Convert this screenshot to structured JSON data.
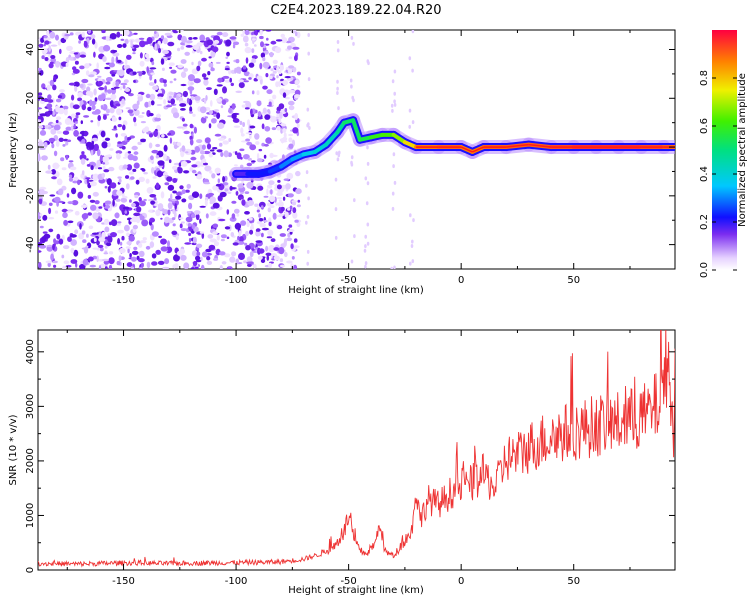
{
  "title": "C2E4.2023.189.22.04.R20",
  "colors": {
    "snr_line": "#ee3333",
    "ridge_core": "#ff1a1a",
    "scatter": "#7a2cf0"
  },
  "chart_data": [
    {
      "type": "heatmap",
      "xlabel": "Height of straight line (km)",
      "ylabel": "Frequency (Hz)",
      "xlim": [
        -188,
        95
      ],
      "ylim": [
        -50,
        48
      ],
      "xticks": [
        -150,
        -100,
        -50,
        0,
        50
      ],
      "yticks": [
        40,
        20,
        0,
        -20,
        -40
      ],
      "colorbar": {
        "label": "Normalized spectral amplitude",
        "range": [
          0,
          1
        ],
        "ticks": [
          0.0,
          0.2,
          0.4,
          0.6,
          0.8
        ]
      },
      "ridge": {
        "x": [
          -100,
          -95,
          -90,
          -85,
          -80,
          -75,
          -70,
          -65,
          -60,
          -55,
          -52,
          -48,
          -45,
          -40,
          -35,
          -30,
          -25,
          -20,
          -10,
          0,
          5,
          10,
          20,
          30,
          40,
          50,
          60,
          70,
          80,
          90,
          95
        ],
        "y": [
          -11,
          -11,
          -11,
          -10,
          -8,
          -5,
          -3,
          -2,
          1,
          6,
          10,
          11,
          3,
          4,
          5,
          5,
          2,
          0,
          0,
          0,
          -2,
          0,
          0,
          1,
          0,
          0,
          0,
          0,
          0,
          0,
          0
        ],
        "amplitude": [
          0.15,
          0.2,
          0.25,
          0.2,
          0.3,
          0.3,
          0.35,
          0.4,
          0.4,
          0.45,
          0.5,
          0.55,
          0.5,
          0.6,
          0.6,
          0.65,
          0.7,
          0.85,
          0.9,
          0.9,
          0.85,
          0.9,
          0.9,
          0.9,
          0.9,
          0.95,
          0.95,
          0.95,
          0.95,
          0.9,
          0.9
        ]
      },
      "scatter_extent_x": [
        -188,
        -72
      ]
    },
    {
      "type": "line",
      "xlabel": "Height of straight line (km)",
      "ylabel": "SNR (10 * v/v)",
      "xlim": [
        -188,
        95
      ],
      "ylim": [
        0,
        4400
      ],
      "xticks": [
        -150,
        -100,
        -50,
        0,
        50
      ],
      "yticks": [
        0,
        1000,
        2000,
        3000,
        4000
      ],
      "series": [
        {
          "x": [
            -188,
            -170,
            -150,
            -130,
            -110,
            -90,
            -80,
            -70,
            -62,
            -56,
            -52,
            -50,
            -48,
            -45,
            -42,
            -38,
            -36,
            -34,
            -30,
            -26,
            -22,
            -20,
            -18,
            -15,
            -10,
            -5,
            0,
            5,
            10,
            15,
            20,
            25,
            30,
            40,
            50,
            60,
            70,
            80,
            85,
            88,
            90,
            92,
            94,
            95
          ],
          "y": [
            120,
            110,
            130,
            120,
            130,
            140,
            150,
            200,
            300,
            450,
            700,
            1000,
            600,
            350,
            300,
            500,
            900,
            350,
            250,
            500,
            700,
            1500,
            900,
            1300,
            1200,
            1400,
            1550,
            1600,
            1750,
            1500,
            2050,
            2100,
            2250,
            2450,
            2550,
            2650,
            2700,
            2800,
            2900,
            3100,
            3500,
            4000,
            2500,
            2700
          ]
        }
      ]
    }
  ]
}
